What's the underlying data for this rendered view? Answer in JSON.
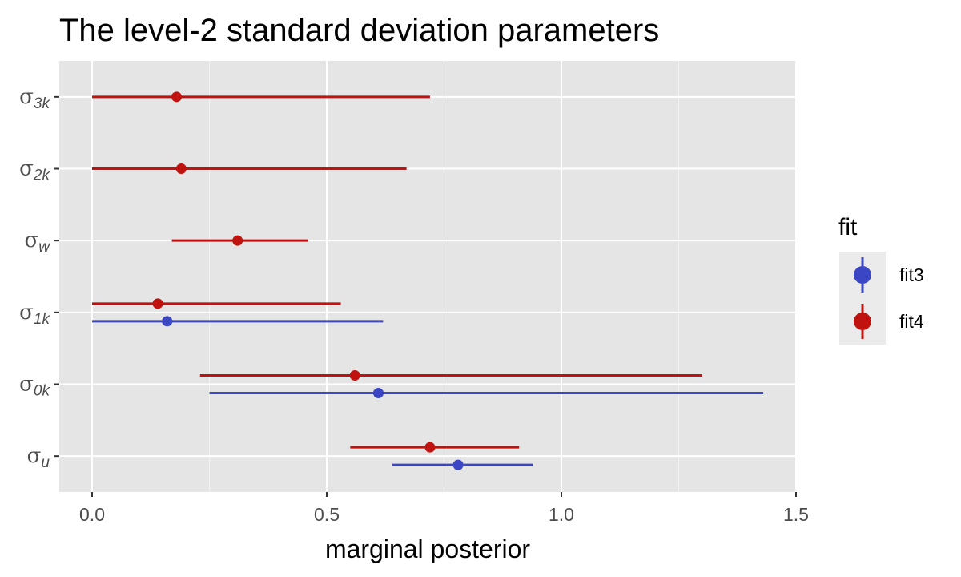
{
  "chart_data": {
    "type": "pointrange",
    "title": "The level-2 standard deviation parameters",
    "xlabel": "marginal posterior",
    "ylabel": "",
    "xlim": [
      -0.07,
      1.5
    ],
    "x_ticks": [
      "0.0",
      "0.5",
      "1.0",
      "1.5"
    ],
    "x_tick_values": [
      0,
      0.5,
      1.0,
      1.5
    ],
    "categories": [
      {
        "main": "σ",
        "sub": "u"
      },
      {
        "main": "σ",
        "sub": "0k"
      },
      {
        "main": "σ",
        "sub": "1k"
      },
      {
        "main": "σ",
        "sub": "w"
      },
      {
        "main": "σ",
        "sub": "2k"
      },
      {
        "main": "σ",
        "sub": "3k"
      }
    ],
    "grid": true,
    "legend": {
      "title": "fit",
      "placement": "right",
      "entries": [
        {
          "name": "fit3",
          "color": "#3a46c4"
        },
        {
          "name": "fit4",
          "color": "#c0130f"
        }
      ]
    },
    "series": [
      {
        "name": "fit3",
        "color": "#3a46c4",
        "points": [
          {
            "category": 0,
            "estimate": 0.78,
            "lower": 0.64,
            "upper": 0.94
          },
          {
            "category": 1,
            "estimate": 0.61,
            "lower": 0.25,
            "upper": 1.43
          },
          {
            "category": 2,
            "estimate": 0.16,
            "lower": 0.0,
            "upper": 0.62
          }
        ]
      },
      {
        "name": "fit4",
        "color": "#c0130f",
        "points": [
          {
            "category": 0,
            "estimate": 0.72,
            "lower": 0.55,
            "upper": 0.91
          },
          {
            "category": 1,
            "estimate": 0.56,
            "lower": 0.23,
            "upper": 1.3
          },
          {
            "category": 2,
            "estimate": 0.14,
            "lower": 0.0,
            "upper": 0.53
          },
          {
            "category": 3,
            "estimate": 0.31,
            "lower": 0.17,
            "upper": 0.46
          },
          {
            "category": 4,
            "estimate": 0.19,
            "lower": 0.0,
            "upper": 0.67
          },
          {
            "category": 5,
            "estimate": 0.18,
            "lower": 0.0,
            "upper": 0.72
          }
        ]
      }
    ]
  }
}
